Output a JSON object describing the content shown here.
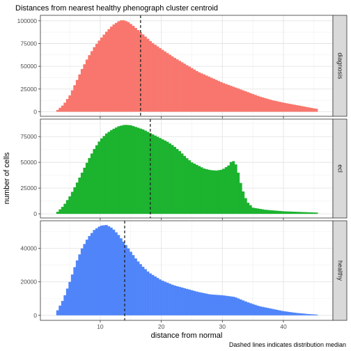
{
  "chart_data": {
    "type": "bar",
    "title": "Distances from nearest healthy phenograph cluster centroid",
    "xlabel": "distance from normal",
    "ylabel": "number of cells",
    "caption": "Dashed lines indicates distribution median",
    "xlim": [
      0.2,
      48.1
    ],
    "xticks": [
      10,
      20,
      30,
      40
    ],
    "bin_width": 0.4,
    "grid": true,
    "panels": [
      {
        "name": "diagnosis",
        "color": "#F8766D",
        "median": 16.6,
        "ylim": [
          -5000,
          106000
        ],
        "yticks": [
          0,
          25000,
          50000,
          75000,
          100000
        ],
        "ytick_labels": [
          "0",
          "25000",
          "50000",
          "75000",
          "100000"
        ],
        "knots": [
          [
            2.8,
            0
          ],
          [
            3.0,
            2000
          ],
          [
            4.0,
            8000
          ],
          [
            5.0,
            18000
          ],
          [
            6.0,
            32000
          ],
          [
            7.0,
            47000
          ],
          [
            8.0,
            60000
          ],
          [
            9.0,
            71000
          ],
          [
            10.0,
            80000
          ],
          [
            11.0,
            88000
          ],
          [
            12.0,
            95000
          ],
          [
            13.0,
            99500
          ],
          [
            13.6,
            101000
          ],
          [
            14.5,
            99000
          ],
          [
            15.5,
            94000
          ],
          [
            16.5,
            88000
          ],
          [
            17.5,
            82000
          ],
          [
            18.5,
            76000
          ],
          [
            20.0,
            69000
          ],
          [
            22.0,
            60000
          ],
          [
            24.0,
            52000
          ],
          [
            26.0,
            44000
          ],
          [
            28.0,
            38000
          ],
          [
            30.0,
            32000
          ],
          [
            32.0,
            27000
          ],
          [
            34.0,
            22000
          ],
          [
            36.0,
            17000
          ],
          [
            38.0,
            13000
          ],
          [
            40.0,
            10000
          ],
          [
            42.0,
            7500
          ],
          [
            44.0,
            5000
          ],
          [
            45.6,
            3000
          ],
          [
            45.8,
            0
          ]
        ]
      },
      {
        "name": "ecl",
        "color": "#1CB32F",
        "median": 18.2,
        "ylim": [
          -4000,
          92000
        ],
        "yticks": [
          0,
          25000,
          50000,
          75000
        ],
        "ytick_labels": [
          "0",
          "25000",
          "50000",
          "75000"
        ],
        "knots": [
          [
            2.8,
            0
          ],
          [
            3.0,
            2000
          ],
          [
            4.0,
            8000
          ],
          [
            5.0,
            17000
          ],
          [
            6.0,
            28000
          ],
          [
            7.0,
            40000
          ],
          [
            8.0,
            52000
          ],
          [
            9.0,
            63000
          ],
          [
            10.0,
            72000
          ],
          [
            11.0,
            78000
          ],
          [
            12.0,
            82000
          ],
          [
            13.0,
            85000
          ],
          [
            14.0,
            86500
          ],
          [
            15.0,
            86000
          ],
          [
            16.0,
            84000
          ],
          [
            17.0,
            82000
          ],
          [
            18.0,
            79000
          ],
          [
            19.0,
            76000
          ],
          [
            20.0,
            73000
          ],
          [
            21.0,
            70000
          ],
          [
            22.0,
            66000
          ],
          [
            23.0,
            61000
          ],
          [
            24.0,
            55000
          ],
          [
            25.0,
            50000
          ],
          [
            26.0,
            47000
          ],
          [
            27.0,
            44000
          ],
          [
            28.0,
            42500
          ],
          [
            29.0,
            42000
          ],
          [
            30.0,
            43000
          ],
          [
            31.0,
            47000
          ],
          [
            31.6,
            52000
          ],
          [
            32.1,
            50000
          ],
          [
            32.6,
            40000
          ],
          [
            33.2,
            25000
          ],
          [
            34.0,
            12000
          ],
          [
            35.0,
            6000
          ],
          [
            37.0,
            4000
          ],
          [
            40.0,
            2500
          ],
          [
            45.6,
            1200
          ],
          [
            45.8,
            0
          ]
        ]
      },
      {
        "name": "healthy",
        "color": "#5085FA",
        "median": 14.0,
        "ylim": [
          -3000,
          56500
        ],
        "yticks": [
          0,
          20000,
          40000
        ],
        "ytick_labels": [
          "0",
          "20000",
          "40000"
        ],
        "knots": [
          [
            2.8,
            0
          ],
          [
            3.0,
            3000
          ],
          [
            4.0,
            10000
          ],
          [
            5.0,
            20000
          ],
          [
            6.0,
            31000
          ],
          [
            7.0,
            40000
          ],
          [
            8.0,
            46500
          ],
          [
            9.0,
            51000
          ],
          [
            10.0,
            53500
          ],
          [
            11.0,
            54000
          ],
          [
            12.0,
            52000
          ],
          [
            13.0,
            48000
          ],
          [
            14.0,
            43000
          ],
          [
            15.0,
            38000
          ],
          [
            16.0,
            33000
          ],
          [
            17.0,
            29000
          ],
          [
            18.0,
            25500
          ],
          [
            20.0,
            21000
          ],
          [
            22.0,
            18000
          ],
          [
            24.0,
            16000
          ],
          [
            26.0,
            14000
          ],
          [
            28.0,
            12500
          ],
          [
            30.0,
            12000
          ],
          [
            32.0,
            11000
          ],
          [
            34.0,
            8000
          ],
          [
            36.0,
            5500
          ],
          [
            38.0,
            4000
          ],
          [
            40.0,
            2500
          ],
          [
            42.0,
            1500
          ],
          [
            44.0,
            800
          ],
          [
            45.6,
            400
          ],
          [
            45.8,
            0
          ]
        ]
      }
    ]
  }
}
